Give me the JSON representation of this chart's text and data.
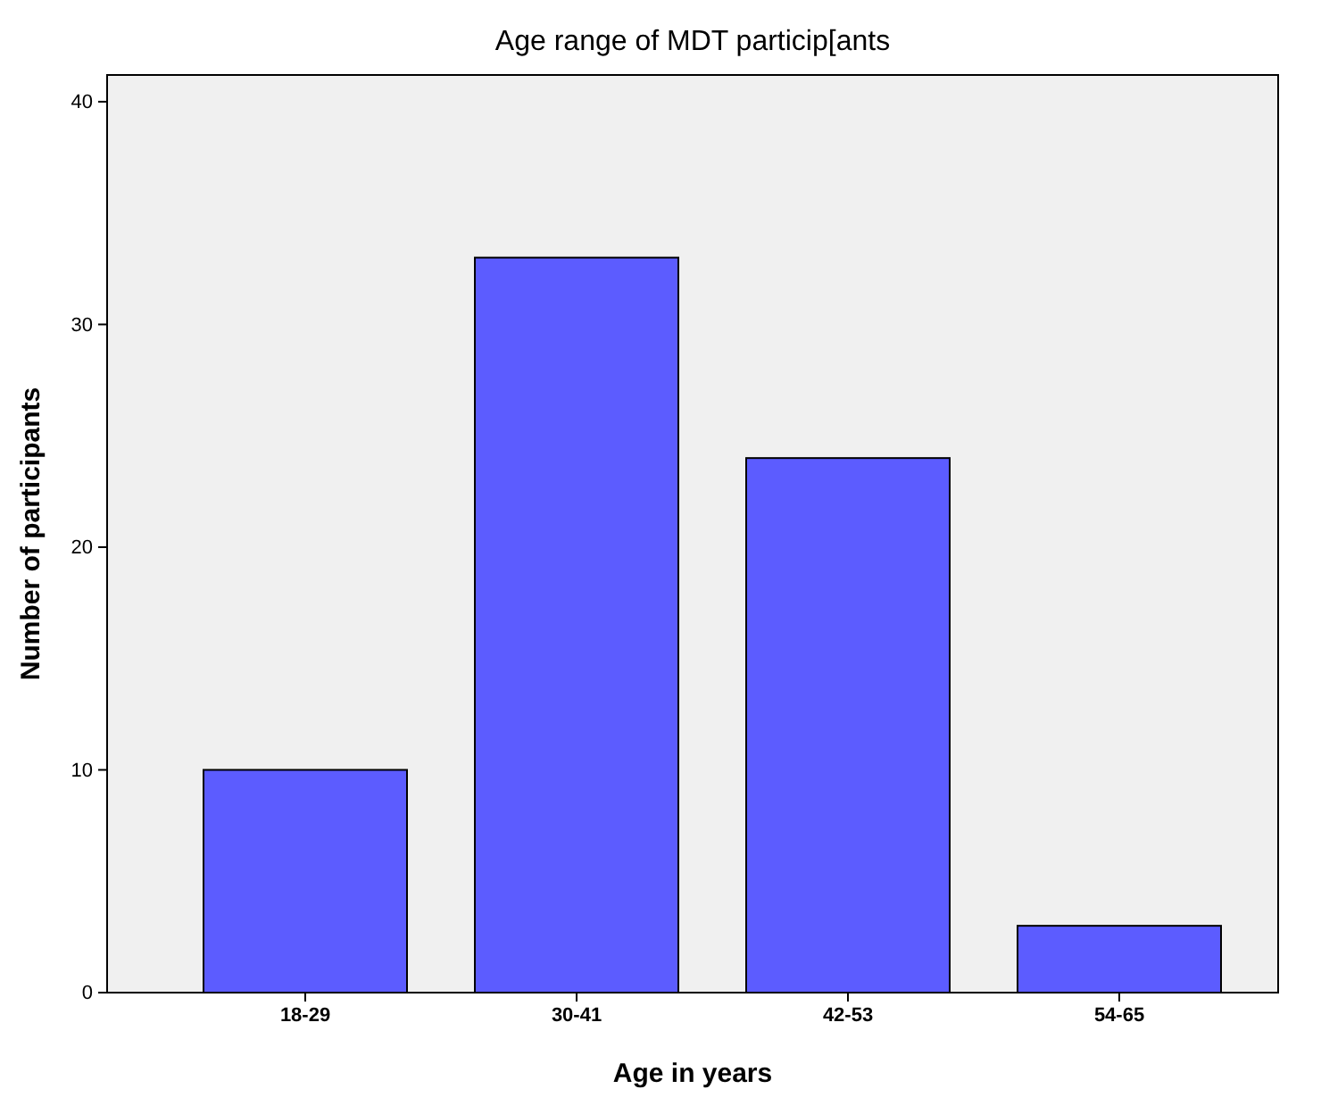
{
  "chart_data": {
    "type": "bar",
    "title": "Age range of MDT particip[ants",
    "xlabel": "Age in years",
    "ylabel": "Number of participants",
    "categories": [
      "18-29",
      "30-41",
      "42-53",
      "54-65"
    ],
    "values": [
      10,
      33,
      24,
      3
    ],
    "color": "#5c5cff",
    "ylim": [
      0,
      41.2
    ],
    "yticks": [
      0,
      10,
      20,
      30,
      40
    ],
    "grid": false
  }
}
